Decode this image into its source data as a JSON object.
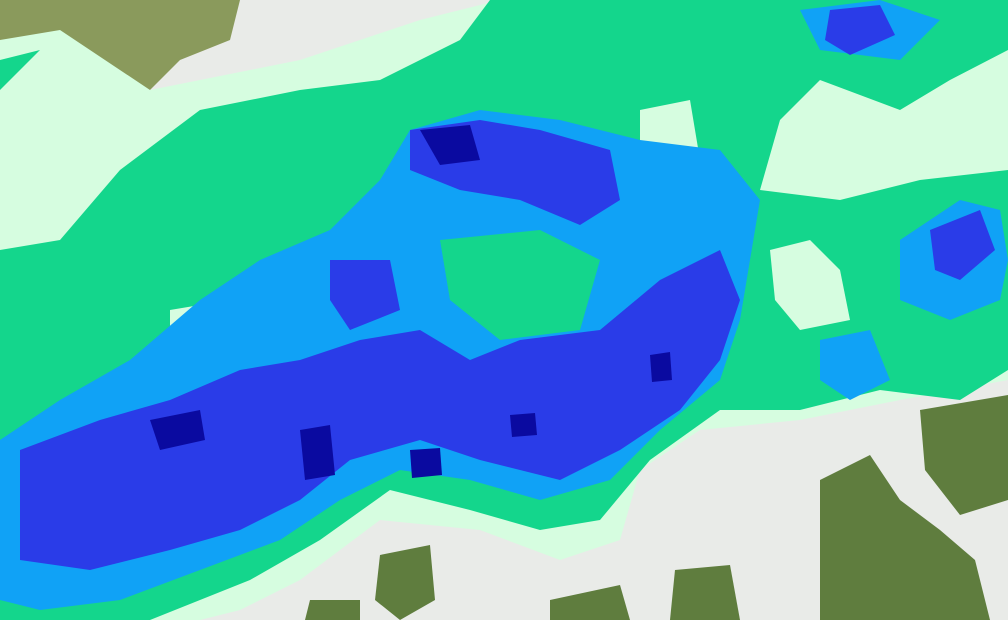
{
  "map": {
    "type": "precipitation-radar-overlay",
    "basemap": "terrain",
    "colors": {
      "background": "#e9ebe8",
      "terrain": "#5f7d3e",
      "terrain_light": "#8a9a5c",
      "level_1": "#d6fde0",
      "level_2": "#14d68c",
      "level_3": "#10a2f6",
      "level_4": "#2a3ce8",
      "level_5": "#0a0aa0"
    }
  }
}
